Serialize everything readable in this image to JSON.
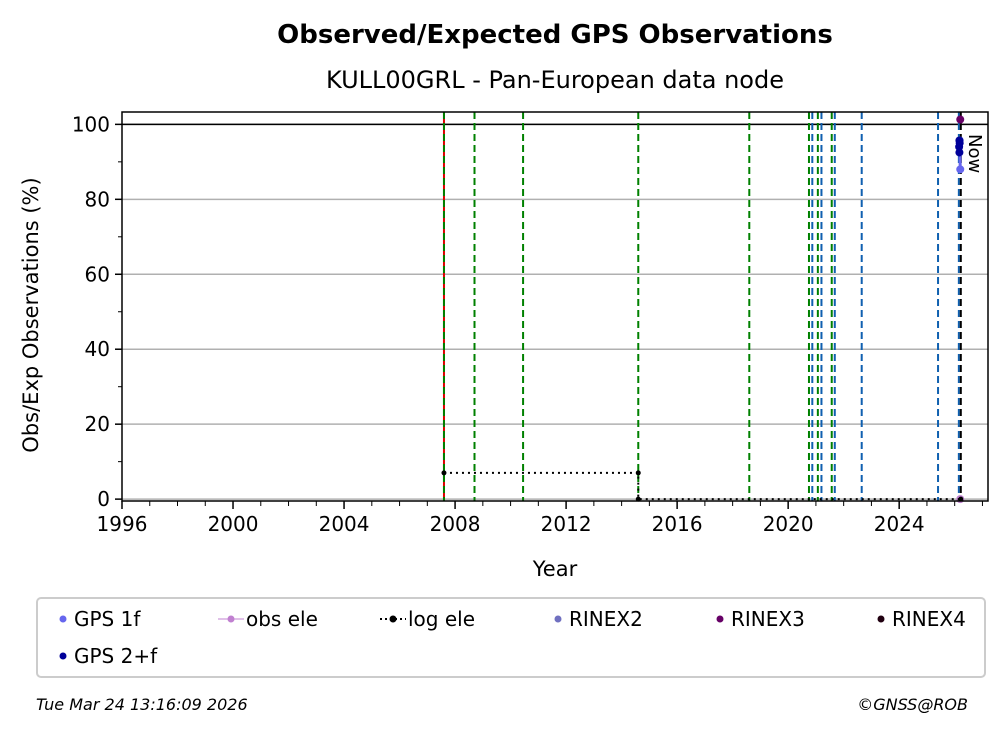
{
  "chart_data": {
    "type": "line",
    "title": "Observed/Expected GPS Observations",
    "subtitle": "KULL00GRL - Pan-European data node",
    "xlabel": "Year",
    "ylabel": "Obs/Exp Observations (%)",
    "xlim": [
      1996,
      2027.2
    ],
    "ylim": [
      -0.5,
      103.3
    ],
    "x_ticks": [
      1996,
      2000,
      2004,
      2008,
      2012,
      2016,
      2020,
      2024
    ],
    "y_ticks": [
      0,
      20,
      40,
      60,
      80,
      100
    ],
    "grid": "horizontal",
    "reference_line": 100,
    "now_label": "Now",
    "now_year": 2026.22,
    "vlines": [
      {
        "x": 2007.6,
        "color": "#dd0000",
        "style": "solid"
      },
      {
        "x": 2007.6,
        "color": "#008000",
        "style": "dashed"
      },
      {
        "x": 2008.7,
        "color": "#008000",
        "style": "dashed"
      },
      {
        "x": 2010.45,
        "color": "#008000",
        "style": "dashed"
      },
      {
        "x": 2014.6,
        "color": "#008000",
        "style": "dashed"
      },
      {
        "x": 2018.6,
        "color": "#008000",
        "style": "dashed"
      },
      {
        "x": 2020.75,
        "color": "#008000",
        "style": "dashed"
      },
      {
        "x": 2020.87,
        "color": "#1060b0",
        "style": "dashed"
      },
      {
        "x": 2021.07,
        "color": "#008000",
        "style": "dashed"
      },
      {
        "x": 2021.2,
        "color": "#1060b0",
        "style": "dashed"
      },
      {
        "x": 2021.57,
        "color": "#008000",
        "style": "dashed"
      },
      {
        "x": 2021.68,
        "color": "#1060b0",
        "style": "dashed"
      },
      {
        "x": 2022.65,
        "color": "#1060b0",
        "style": "dashed"
      },
      {
        "x": 2025.4,
        "color": "#1060b0",
        "style": "dashed"
      },
      {
        "x": 2026.15,
        "color": "#1060b0",
        "style": "dashed"
      },
      {
        "x": 2026.22,
        "color": "#000000",
        "style": "dashed"
      }
    ],
    "series": [
      {
        "name": "GPS 1f",
        "color": "#6666ee",
        "x": [
          2026.18,
          2026.2
        ],
        "y": [
          95.7,
          88
        ]
      },
      {
        "name": "obs ele",
        "color": "#c080d0",
        "x": [
          2026.2
        ],
        "y": [
          0
        ]
      },
      {
        "name": "log ele",
        "color": "#000000",
        "x": [
          2007.6,
          2014.6,
          2014.6,
          2026.22
        ],
        "y": [
          7,
          7,
          0,
          0
        ]
      },
      {
        "name": "RINEX2",
        "color": "#7070c0",
        "x": [],
        "y": []
      },
      {
        "name": "RINEX3",
        "color": "#660066",
        "x": [
          2026.2
        ],
        "y": [
          101.3
        ]
      },
      {
        "name": "RINEX4",
        "color": "#200010",
        "x": [],
        "y": []
      },
      {
        "name": "GPS 2+f",
        "color": "#000099",
        "x": [
          2026.17,
          2026.18,
          2026.16,
          2026.17
        ],
        "y": [
          95.7,
          95,
          94,
          92.5
        ]
      }
    ]
  },
  "footer": {
    "timestamp": "Tue Mar 24 13:16:09 2026",
    "credit": "©GNSS@ROB"
  }
}
